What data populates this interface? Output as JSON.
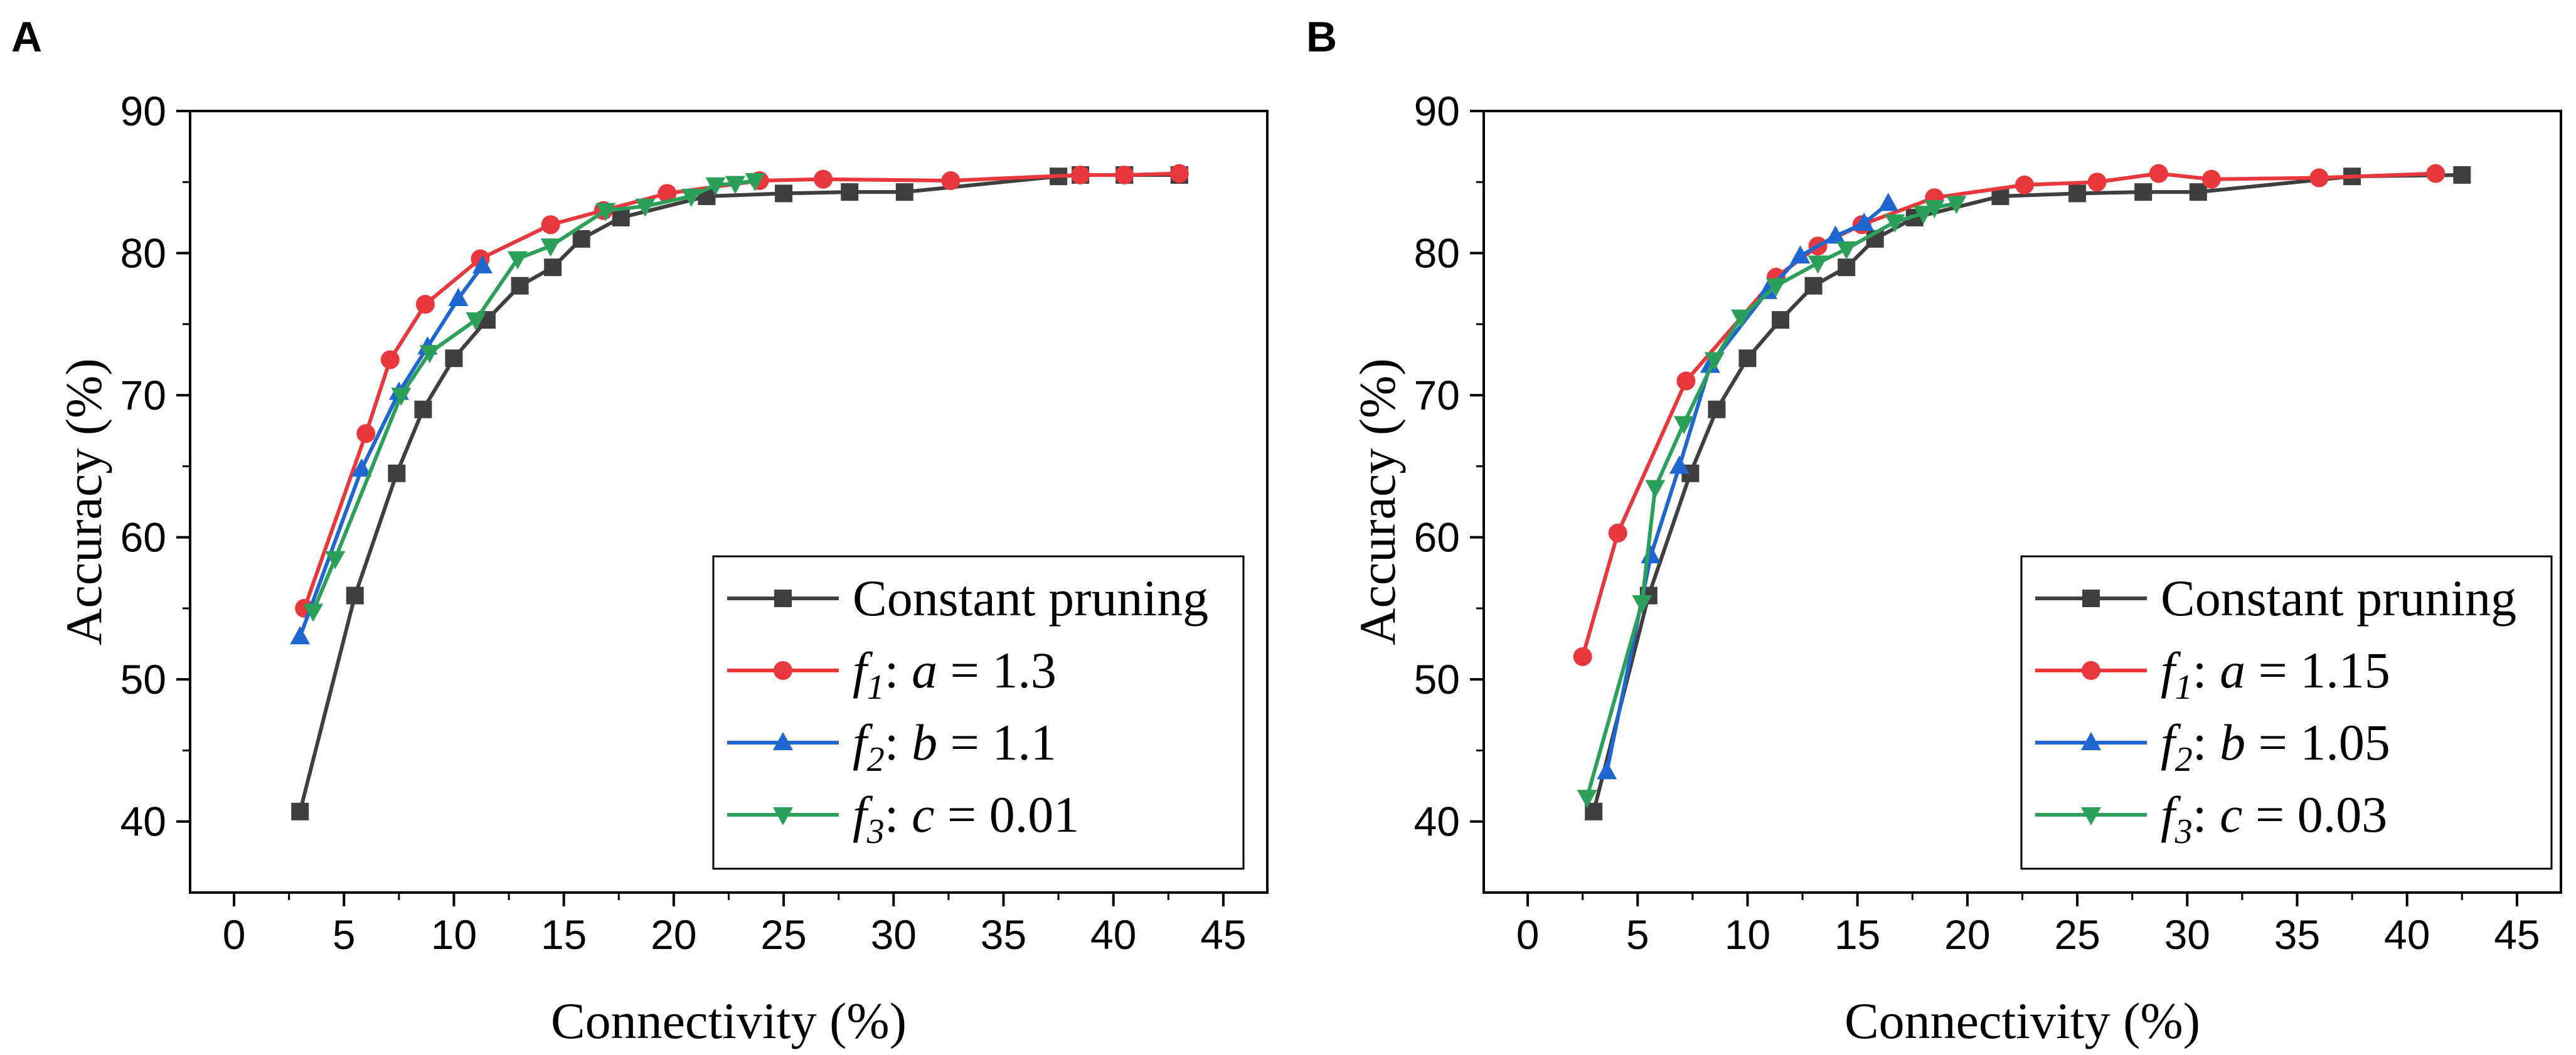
{
  "chart_data": [
    {
      "type": "line",
      "panel_label": "A",
      "xlabel": "Connectivity (%)",
      "ylabel": "Accuracy (%)",
      "xlim": [
        -2,
        47
      ],
      "ylim": [
        35,
        90
      ],
      "xticks": [
        0,
        5,
        10,
        15,
        20,
        25,
        30,
        35,
        40,
        45
      ],
      "yticks": [
        40,
        50,
        60,
        70,
        80,
        90
      ],
      "grid": false,
      "legend_position": "bottom-right",
      "series": [
        {
          "name": "Constant pruning",
          "legend": {
            "label": "Constant pruning"
          },
          "color": "#3f3f3f",
          "marker": "square",
          "x": [
            3.0,
            5.5,
            7.4,
            8.6,
            10.0,
            11.5,
            13.0,
            14.5,
            15.8,
            17.6,
            21.5,
            25.0,
            28.0,
            30.5,
            37.5,
            38.5,
            40.5,
            43.0
          ],
          "y": [
            40.7,
            55.9,
            64.5,
            69.0,
            72.6,
            75.3,
            77.7,
            79.0,
            81.0,
            82.5,
            84.0,
            84.2,
            84.3,
            84.3,
            85.4,
            85.5,
            85.5,
            85.5
          ]
        },
        {
          "name": "f1: a = 1.3",
          "legend": {
            "fname": "f",
            "fsub": "1",
            "param": "a",
            "value": "1.3"
          },
          "color": "#e8383d",
          "marker": "circle",
          "x": [
            3.2,
            6.0,
            7.1,
            8.7,
            11.2,
            14.4,
            16.8,
            19.7,
            23.9,
            26.8,
            32.6,
            38.5,
            40.5,
            43.0
          ],
          "y": [
            55.0,
            67.3,
            72.5,
            76.4,
            79.6,
            82.0,
            83.0,
            84.2,
            85.1,
            85.2,
            85.1,
            85.5,
            85.5,
            85.6
          ]
        },
        {
          "name": "f2: b = 1.1",
          "legend": {
            "fname": "f",
            "fsub": "2",
            "param": "b",
            "value": "1.1"
          },
          "color": "#1f66d1",
          "marker": "triangle-up",
          "x": [
            3.0,
            5.8,
            7.5,
            8.8,
            10.2,
            11.3
          ],
          "y": [
            53.0,
            64.8,
            70.2,
            73.4,
            76.8,
            79.1
          ]
        },
        {
          "name": "f3: c = 0.01",
          "legend": {
            "fname": "f",
            "fsub": "3",
            "param": "c",
            "value": "0.01"
          },
          "color": "#2ca05a",
          "marker": "triangle-down",
          "x": [
            3.6,
            4.6,
            7.6,
            8.9,
            11.0,
            12.9,
            14.4,
            16.9,
            18.7,
            20.8,
            21.9,
            22.8,
            23.7
          ],
          "y": [
            54.8,
            58.5,
            70.0,
            73.0,
            75.3,
            79.6,
            80.5,
            83.0,
            83.3,
            84.0,
            84.8,
            84.9,
            85.1
          ]
        }
      ]
    },
    {
      "type": "line",
      "panel_label": "B",
      "xlabel": "Connectivity (%)",
      "ylabel": "Accuracy (%)",
      "xlim": [
        -2,
        47
      ],
      "ylim": [
        35,
        90
      ],
      "xticks": [
        0,
        5,
        10,
        15,
        20,
        25,
        30,
        35,
        40,
        45
      ],
      "yticks": [
        40,
        50,
        60,
        70,
        80,
        90
      ],
      "grid": false,
      "legend_position": "bottom-right",
      "series": [
        {
          "name": "Constant pruning",
          "legend": {
            "label": "Constant pruning"
          },
          "color": "#3f3f3f",
          "marker": "square",
          "x": [
            3.0,
            5.5,
            7.4,
            8.6,
            10.0,
            11.5,
            13.0,
            14.5,
            15.8,
            17.6,
            21.5,
            25.0,
            28.0,
            30.5,
            37.5,
            42.5
          ],
          "y": [
            40.7,
            55.9,
            64.5,
            69.0,
            72.6,
            75.3,
            77.7,
            79.0,
            81.0,
            82.5,
            84.0,
            84.2,
            84.3,
            84.3,
            85.4,
            85.5
          ]
        },
        {
          "name": "f1: a = 1.15",
          "legend": {
            "fname": "f",
            "fsub": "1",
            "param": "a",
            "value": "1.15"
          },
          "color": "#e8383d",
          "marker": "circle",
          "x": [
            2.5,
            4.1,
            7.2,
            11.3,
            13.2,
            15.2,
            18.5,
            22.6,
            25.9,
            28.7,
            31.1,
            36.0,
            41.3
          ],
          "y": [
            51.6,
            60.3,
            71.0,
            78.3,
            80.5,
            82.0,
            83.9,
            84.8,
            85.0,
            85.6,
            85.2,
            85.3,
            85.6
          ]
        },
        {
          "name": "f2: b = 1.05",
          "legend": {
            "fname": "f",
            "fsub": "2",
            "param": "b",
            "value": "1.05"
          },
          "color": "#1f66d1",
          "marker": "triangle-up",
          "x": [
            3.6,
            5.6,
            6.9,
            8.3,
            10.9,
            12.4,
            14.0,
            15.3,
            16.4
          ],
          "y": [
            43.5,
            58.7,
            65.0,
            72.1,
            77.3,
            79.8,
            81.2,
            82.1,
            83.5
          ]
        },
        {
          "name": "f3: c = 0.03",
          "legend": {
            "fname": "f",
            "fsub": "3",
            "param": "c",
            "value": "0.03"
          },
          "color": "#2ca05a",
          "marker": "triangle-down",
          "x": [
            2.7,
            5.2,
            5.8,
            7.1,
            8.5,
            9.7,
            11.3,
            13.2,
            14.5,
            16.7,
            18.0,
            18.5,
            19.5
          ],
          "y": [
            41.7,
            55.4,
            63.5,
            68.0,
            72.5,
            75.5,
            77.7,
            79.3,
            80.3,
            82.2,
            82.8,
            83.2,
            83.5
          ]
        }
      ]
    }
  ]
}
